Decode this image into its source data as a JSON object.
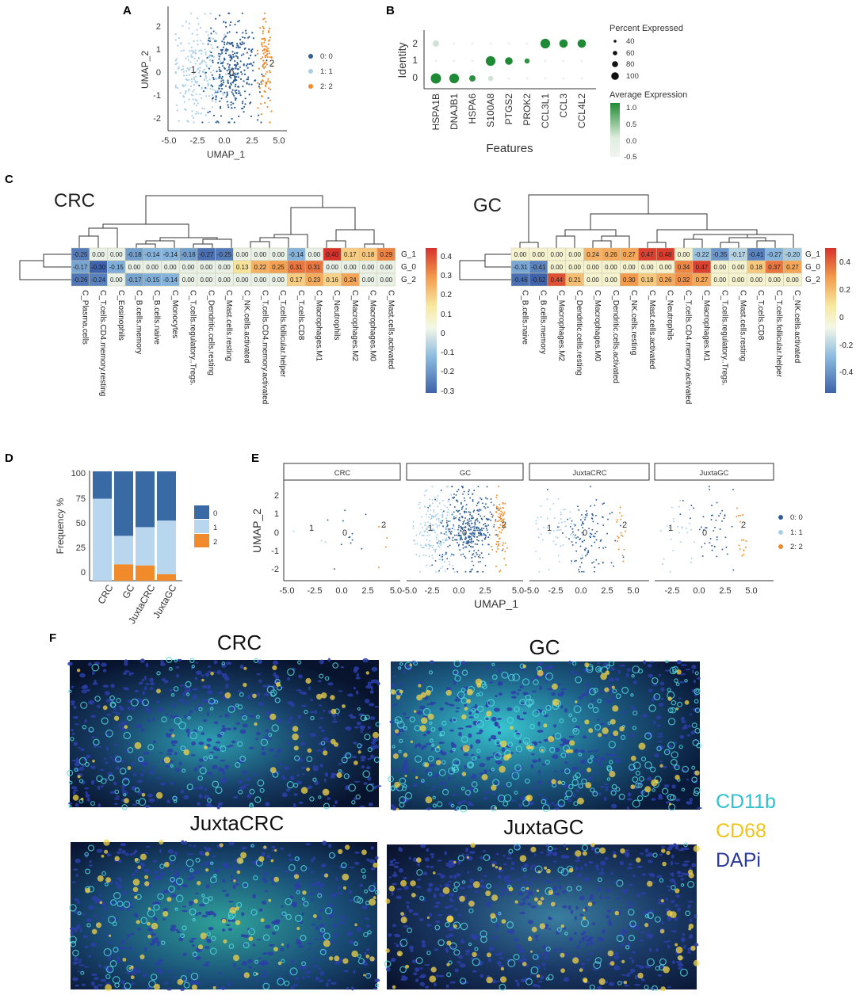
{
  "panel_labels": {
    "a": "A",
    "b": "B",
    "c": "C",
    "d": "D",
    "e": "E",
    "f": "F"
  },
  "colors": {
    "c0": "#2f5f96",
    "c1": "#a9cfe8",
    "c2": "#f08a2b",
    "dot_green": "#2a8a3a",
    "dot_light": "#e4ecde",
    "cd11b": "#2fc0d0",
    "cd68": "#f3c318",
    "dapi": "#2a3a9a"
  },
  "panel_a": {
    "xlabel": "UMAP_1",
    "ylabel": "UMAP_2",
    "xticks": [
      "-5.0",
      "-2.5",
      "0.0",
      "2.5",
      "5.0"
    ],
    "yticks": [
      "2",
      "1",
      "0",
      "-1",
      "-2"
    ],
    "cluster_labels": [
      "1",
      "0",
      "2"
    ],
    "legend": [
      "0: 0",
      "1: 1",
      "2: 2"
    ]
  },
  "panel_b": {
    "ylabel": "Identity",
    "xlabel": "Features",
    "identities": [
      "2",
      "1",
      "0"
    ],
    "features": [
      "HSPA1B",
      "DNAJB1",
      "HSPA6",
      "S100A8",
      "PTGS2",
      "PROK2",
      "CCL3L1",
      "CCL3",
      "CCL4L2"
    ],
    "legend_size_title": "Percent Expressed",
    "legend_sizes": [
      "40",
      "60",
      "80",
      "100"
    ],
    "legend_color_title": "Average Expression",
    "legend_color_ticks": [
      "1.0",
      "0.5",
      "0.0",
      "-0.5"
    ]
  },
  "panel_c": {
    "crc": {
      "title": "CRC",
      "rows": [
        "G_1",
        "G_0",
        "G_2"
      ],
      "cols": [
        "C_Plasma.cells",
        "C_T.cells.CD4.memory.resting",
        "C_Eosinophils",
        "C_B.cells.memory",
        "C_B.cells.naive",
        "C_Monocytes",
        "C_T.cells.regulatory..Tregs.",
        "C_Dendritic.cells.resting",
        "C_Mast.cells.resting",
        "C_NK.cells.activated",
        "C_T.cells.CD4.memory.activated",
        "C_T.cells.follicular.helper",
        "C_T.cells.CD8",
        "C_Macrophages.M1",
        "C_Neutrophils",
        "C_Macrophages.M2",
        "C_Macrophages.M0",
        "C_Mast.cells.activated"
      ],
      "values": [
        [
          "-0.25",
          "0.00",
          "0.00",
          "-0.18",
          "-0.14",
          "-0.14",
          "-0.18",
          "-0.27",
          "-0.25",
          "0.00",
          "0.00",
          "0.00",
          "-0.14",
          "0.00",
          "0.40",
          "0.17",
          "0.18",
          "0.29"
        ],
        [
          "-0.17",
          "-0.30",
          "-0.15",
          "0.00",
          "0.00",
          "0.00",
          "0.00",
          "0.00",
          "0.00",
          "0.13",
          "0.22",
          "0.25",
          "0.31",
          "0.31",
          "0.00",
          "0.00",
          "0.00",
          "0.00"
        ],
        [
          "-0.26",
          "-0.24",
          "0.00",
          "-0.17",
          "-0.15",
          "-0.14",
          "0.00",
          "0.00",
          "0.00",
          "0.00",
          "0.00",
          "0.00",
          "0.17",
          "0.23",
          "0.16",
          "0.24",
          "0.00",
          "0.00"
        ]
      ],
      "scale_ticks": [
        "0.4",
        "0.3",
        "0.2",
        "0.1",
        "0",
        "-0.1",
        "-0.2",
        "-0.3"
      ]
    },
    "gc": {
      "title": "GC",
      "rows": [
        "G_1",
        "G_0",
        "G_2"
      ],
      "cols": [
        "C_B.cells.naive",
        "C_B.cells.memory",
        "C_Macrophages.M2",
        "C_Dendritic.cells.resting",
        "C_Macrophages.M0",
        "C_Dendritic.cells.activated",
        "C_NK.cells.resting",
        "C_Mast.cells.activated",
        "C_Neutrophils",
        "C_T.cells.CD4.memory.activated",
        "C_Macrophages.M1",
        "C_T.cells.regulatory..Tregs.",
        "C_Mast.cells.resting",
        "C_T.cells.CD8",
        "C_T.cells.follicular.helper",
        "C_NK.cells.activated"
      ],
      "values": [
        [
          "0.00",
          "0.00",
          "0.00",
          "0.00",
          "0.24",
          "0.26",
          "0.27",
          "0.47",
          "0.48",
          "0.00",
          "-0.22",
          "-0.35",
          "-0.17",
          "-0.41",
          "-0.27",
          "-0.20"
        ],
        [
          "-0.31",
          "-0.41",
          "0.00",
          "0.00",
          "0.00",
          "0.00",
          "0.00",
          "0.00",
          "0.00",
          "0.34",
          "0.47",
          "0.00",
          "0.00",
          "0.18",
          "0.37",
          "0.27"
        ],
        [
          "-0.46",
          "-0.52",
          "0.44",
          "0.21",
          "0.00",
          "0.00",
          "0.30",
          "0.18",
          "0.26",
          "0.32",
          "0.27",
          "0.00",
          "0.00",
          "0.00",
          "0.00",
          "0.00"
        ]
      ],
      "scale_ticks": [
        "0.4",
        "0.2",
        "0",
        "-0.2",
        "-0.4"
      ]
    }
  },
  "panel_d": {
    "ylabel": "Frequency %",
    "yticks": [
      "100",
      "75",
      "50",
      "25",
      "0"
    ],
    "categories": [
      "CRC",
      "GC",
      "JuxtaCRC",
      "JuxtaGC"
    ],
    "legend": [
      "0",
      "1",
      "2"
    ]
  },
  "panel_e": {
    "facets": [
      "CRC",
      "GC",
      "JuxtaCRC",
      "JuxtaGC"
    ],
    "xlabel": "UMAP_1",
    "ylabel": "UMAP_2",
    "xticks_first": [
      "-5.0",
      "-2.5",
      "0.0",
      "2.5",
      "5.0"
    ],
    "xticks_mid": [
      "-2.5",
      "0.0",
      "2.5",
      "5.0"
    ],
    "xticks_joined": [
      "5.0-5.0"
    ],
    "yticks": [
      "2",
      "1",
      "0",
      "-1",
      "-2"
    ],
    "cluster_labels": [
      "1",
      "0",
      "2"
    ],
    "legend": [
      "0: 0",
      "1: 1",
      "2: 2"
    ]
  },
  "panel_f": {
    "titles": [
      "CRC",
      "GC",
      "JuxtaCRC",
      "JuxtaGC"
    ],
    "legend": [
      "CD11b",
      "CD68",
      "DAPi"
    ]
  },
  "chart_data": [
    {
      "id": "A",
      "type": "scatter",
      "title": "",
      "xlabel": "UMAP_1",
      "ylabel": "UMAP_2",
      "xlim": [
        -5.5,
        5.5
      ],
      "ylim": [
        -2.6,
        2.7
      ],
      "legend": [
        "0: 0",
        "1: 1",
        "2: 2"
      ],
      "clusters": [
        {
          "name": "0",
          "center": [
            0.8,
            0.0
          ],
          "label": "0"
        },
        {
          "name": "1",
          "center": [
            -2.8,
            0.1
          ],
          "label": "1"
        },
        {
          "name": "2",
          "center": [
            4.2,
            0.3
          ],
          "label": "2"
        }
      ]
    },
    {
      "id": "B",
      "type": "scatter",
      "subtype": "dotplot",
      "xlabel": "Features",
      "ylabel": "Identity",
      "categories": [
        "HSPA1B",
        "DNAJB1",
        "HSPA6",
        "S100A8",
        "PTGS2",
        "PROK2",
        "CCL3L1",
        "CCL3",
        "CCL4L2"
      ],
      "identities": [
        "0",
        "1",
        "2"
      ],
      "series": [
        {
          "name": "2",
          "avg_expression": [
            -0.3,
            -0.5,
            -0.5,
            -0.5,
            -0.5,
            -0.5,
            1.0,
            1.0,
            1.0
          ],
          "percent": [
            70,
            40,
            40,
            40,
            40,
            40,
            95,
            85,
            85
          ]
        },
        {
          "name": "1",
          "avg_expression": [
            -0.5,
            -0.5,
            -0.5,
            1.0,
            1.0,
            0.9,
            -0.5,
            -0.5,
            -0.5
          ],
          "percent": [
            40,
            40,
            40,
            95,
            80,
            60,
            40,
            40,
            40
          ]
        },
        {
          "name": "0",
          "avg_expression": [
            1.0,
            1.0,
            0.9,
            -0.3,
            -0.5,
            -0.5,
            -0.5,
            -0.5,
            -0.5
          ],
          "percent": [
            100,
            95,
            70,
            60,
            40,
            40,
            40,
            40,
            40
          ]
        }
      ],
      "color_range": [
        -0.5,
        1.0
      ],
      "size_legend": [
        40,
        60,
        80,
        100
      ]
    },
    {
      "id": "C-CRC",
      "type": "heatmap",
      "title": "CRC",
      "rows": [
        "G_1",
        "G_0",
        "G_2"
      ],
      "color_range": [
        -0.3,
        0.4
      ]
    },
    {
      "id": "C-GC",
      "type": "heatmap",
      "title": "GC",
      "rows": [
        "G_1",
        "G_0",
        "G_2"
      ],
      "color_range": [
        -0.5,
        0.5
      ]
    },
    {
      "id": "D",
      "type": "bar",
      "stacked": true,
      "categories": [
        "CRC",
        "GC",
        "JuxtaCRC",
        "JuxtaGC"
      ],
      "ylabel": "Frequency %",
      "ylim": [
        0,
        100
      ],
      "series": [
        {
          "name": "2",
          "values": [
            0,
            15,
            14,
            6
          ]
        },
        {
          "name": "1",
          "values": [
            75,
            26,
            35,
            49
          ]
        },
        {
          "name": "0",
          "values": [
            25,
            59,
            51,
            45
          ]
        }
      ]
    },
    {
      "id": "E",
      "type": "scatter",
      "facets": [
        "CRC",
        "GC",
        "JuxtaCRC",
        "JuxtaGC"
      ],
      "xlabel": "UMAP_1",
      "ylabel": "UMAP_2",
      "xlim": [
        -5.5,
        5.5
      ],
      "ylim": [
        -2.6,
        2.7
      ],
      "relative_density": [
        0.03,
        1.0,
        0.3,
        0.14
      ]
    }
  ]
}
